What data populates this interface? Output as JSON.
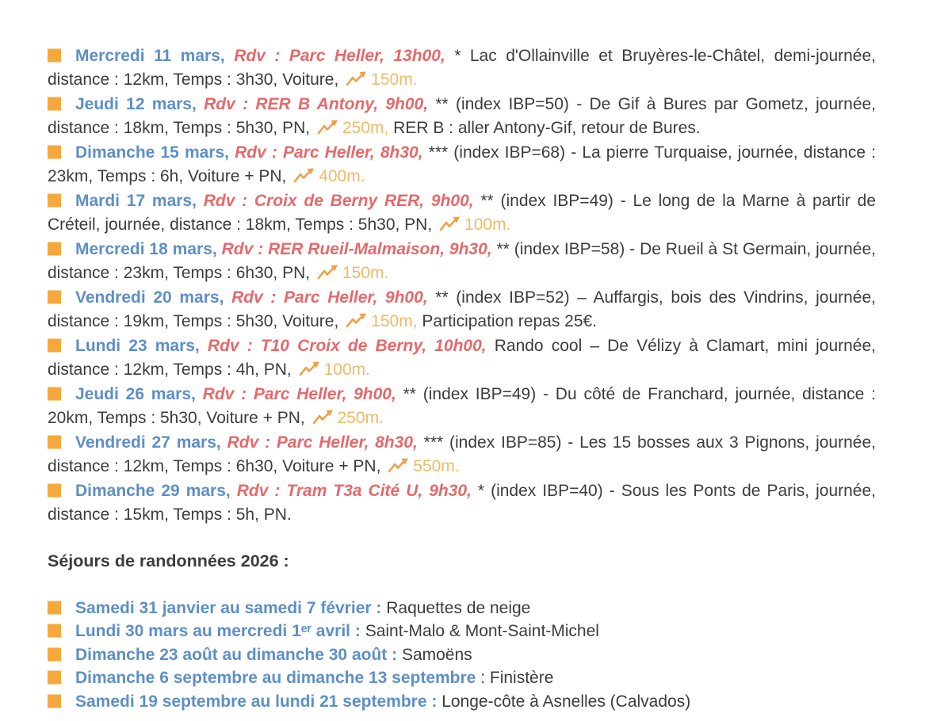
{
  "colors": {
    "accent_orange": "#F6A83C",
    "date_blue": "#5D8FC7",
    "rdv_red": "#E5696B",
    "body_text": "#3C3C3C",
    "icon_orange": "#EDA04B",
    "elevation_orange": "#EFBA67"
  },
  "icons": {
    "bullet": "orange-square",
    "elevation": "trending-up-arrow"
  },
  "events": [
    {
      "date": "Mercredi 11 mars,",
      "rdv": "Rdv : Parc Heller, 13h00,",
      "body": "* Lac d'Ollainville et Bruyères-le-Châtel, demi-journée, distance : 12km, Temps : 3h30, Voiture,",
      "elevation": "150m.",
      "note": ""
    },
    {
      "date": "Jeudi 12 mars,",
      "rdv": "Rdv : RER B Antony, 9h00,",
      "body": "** (index IBP=50) - De Gif à Bures par Gometz, journée, distance : 18km, Temps : 5h30, PN,",
      "elevation": "250m,",
      "note": "RER B : aller Antony-Gif, retour de Bures."
    },
    {
      "date": "Dimanche 15 mars,",
      "rdv": "Rdv : Parc Heller, 8h30,",
      "body": "*** (index IBP=68) - La pierre Turquaise, journée, distance : 23km, Temps : 6h, Voiture + PN,",
      "elevation": "400m.",
      "note": ""
    },
    {
      "date": "Mardi 17 mars,",
      "rdv": "Rdv : Croix de Berny RER, 9h00,",
      "body": "** (index IBP=49) - Le long de la Marne à partir de Créteil, journée, distance : 18km, Temps : 5h30, PN,",
      "elevation": "100m.",
      "note": ""
    },
    {
      "date": "Mercredi 18 mars,",
      "rdv": "Rdv : RER Rueil-Malmaison, 9h30,",
      "body": "** (index IBP=58) - De Rueil à St Germain, journée, distance : 23km, Temps : 6h30, PN,",
      "elevation": "150m.",
      "note": ""
    },
    {
      "date": "Vendredi 20 mars,",
      "rdv": "Rdv : Parc Heller, 9h00,",
      "body": "** (index IBP=52) – Auffargis, bois des Vindrins, journée, distance : 19km, Temps : 5h30, Voiture,",
      "elevation": "150m,",
      "note": "Participation repas 25€."
    },
    {
      "date": "Lundi 23 mars,",
      "rdv": "Rdv : T10 Croix de Berny, 10h00,",
      "body": "Rando cool – De Vélizy à Clamart, mini journée, distance : 12km, Temps : 4h, PN,",
      "elevation": "100m.",
      "note": ""
    },
    {
      "date": "Jeudi 26 mars,",
      "rdv": "Rdv : Parc Heller, 9h00,",
      "body": "** (index IBP=49) - Du côté de Franchard, journée, distance : 20km, Temps : 5h30, Voiture + PN,",
      "elevation": "250m.",
      "note": ""
    },
    {
      "date": "Vendredi 27 mars,",
      "rdv": "Rdv : Parc Heller, 8h30,",
      "body": "*** (index IBP=85) - Les 15 bosses aux 3 Pignons, journée, distance : 12km, Temps : 6h30, Voiture + PN,",
      "elevation": "550m.",
      "note": ""
    },
    {
      "date": "Dimanche 29 mars,",
      "rdv": "Rdv : Tram T3a Cité U, 9h30,",
      "body": "* (index IBP=40) - Sous les Ponts de Paris, journée, distance : 15km, Temps : 5h, PN.",
      "elevation": "",
      "note": ""
    }
  ],
  "sejours": {
    "heading": "Séjours de randonnées 2026 :",
    "items": [
      {
        "date": "Samedi 31 janvier au samedi 7 février :",
        "label": "Raquettes de neige"
      },
      {
        "date": "Lundi 30 mars au mercredi 1ᵉʳ avril :",
        "label": "Saint-Malo & Mont-Saint-Michel"
      },
      {
        "date": "Dimanche 23 août au dimanche 30 août :",
        "label": "Samoëns"
      },
      {
        "date": "Dimanche 6 septembre au dimanche 13 septembre",
        "label": ": Finistère"
      },
      {
        "date": "Samedi 19 septembre au lundi 21 septembre :",
        "label": "Longe-côte à Asnelles (Calvados)"
      }
    ]
  }
}
